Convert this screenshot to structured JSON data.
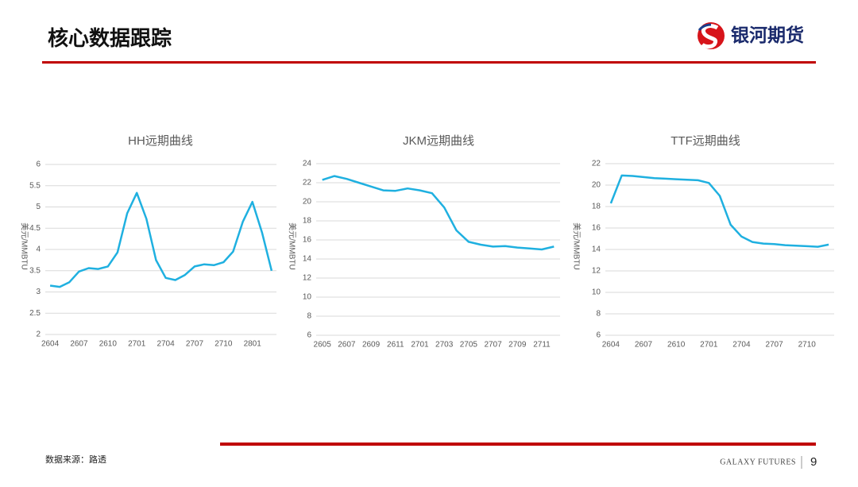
{
  "header": {
    "title": "核心数据跟踪",
    "brand": "银河期货"
  },
  "footer": {
    "source": "数据来源：路透",
    "company": "GALAXY FUTURES",
    "page": "9"
  },
  "chart_data": [
    {
      "type": "line",
      "title": "HH远期曲线",
      "y_label": "美元/MMBTU",
      "categories": [
        "2604",
        null,
        null,
        "2607",
        null,
        null,
        "2610",
        null,
        null,
        "2701",
        null,
        null,
        "2704",
        null,
        null,
        "2707",
        null,
        null,
        "2710",
        null,
        null,
        "2801",
        null,
        null
      ],
      "series": [
        {
          "name": "HH",
          "color": "#1fb0e0",
          "values": [
            3.15,
            3.12,
            3.23,
            3.48,
            3.56,
            3.54,
            3.6,
            3.93,
            4.85,
            5.33,
            4.72,
            3.75,
            3.33,
            3.28,
            3.4,
            3.6,
            3.65,
            3.63,
            3.7,
            3.95,
            4.65,
            5.12,
            4.4,
            3.5
          ]
        }
      ],
      "ylim": [
        2,
        6
      ],
      "yticks": [
        2,
        2.5,
        3,
        3.5,
        4,
        4.5,
        5,
        5.5,
        6
      ],
      "grid": true
    },
    {
      "type": "line",
      "title": "JKM远期曲线",
      "y_label": "美元/MMBTU",
      "categories": [
        "2605",
        null,
        "2607",
        null,
        "2609",
        null,
        "2611",
        null,
        "2701",
        null,
        "2703",
        null,
        "2705",
        null,
        "2707",
        null,
        "2709",
        null,
        "2711",
        null
      ],
      "series": [
        {
          "name": "JKM",
          "color": "#1fb0e0",
          "values": [
            22.3,
            22.7,
            22.4,
            22.0,
            21.6,
            21.2,
            21.15,
            21.4,
            21.2,
            20.9,
            19.4,
            17.0,
            15.8,
            15.5,
            15.3,
            15.35,
            15.2,
            15.1,
            15.0,
            15.3
          ]
        }
      ],
      "ylim": [
        6,
        24
      ],
      "yticks": [
        6,
        8,
        10,
        12,
        14,
        16,
        18,
        20,
        22,
        24
      ],
      "grid": true
    },
    {
      "type": "line",
      "title": "TTF远期曲线",
      "y_label": "美元/MMBTU",
      "categories": [
        "2604",
        null,
        null,
        "2607",
        null,
        null,
        "2610",
        null,
        null,
        "2701",
        null,
        null,
        "2704",
        null,
        null,
        "2707",
        null,
        null,
        "2710",
        null,
        null
      ],
      "series": [
        {
          "name": "TTF",
          "color": "#1fb0e0",
          "values": [
            18.3,
            20.9,
            20.85,
            20.75,
            20.65,
            20.6,
            20.55,
            20.5,
            20.45,
            20.2,
            19.0,
            16.3,
            15.2,
            14.7,
            14.55,
            14.5,
            14.4,
            14.35,
            14.3,
            14.25,
            14.45
          ]
        }
      ],
      "ylim": [
        6,
        22
      ],
      "yticks": [
        6,
        8,
        10,
        12,
        14,
        16,
        18,
        20,
        22
      ],
      "grid": true
    }
  ]
}
